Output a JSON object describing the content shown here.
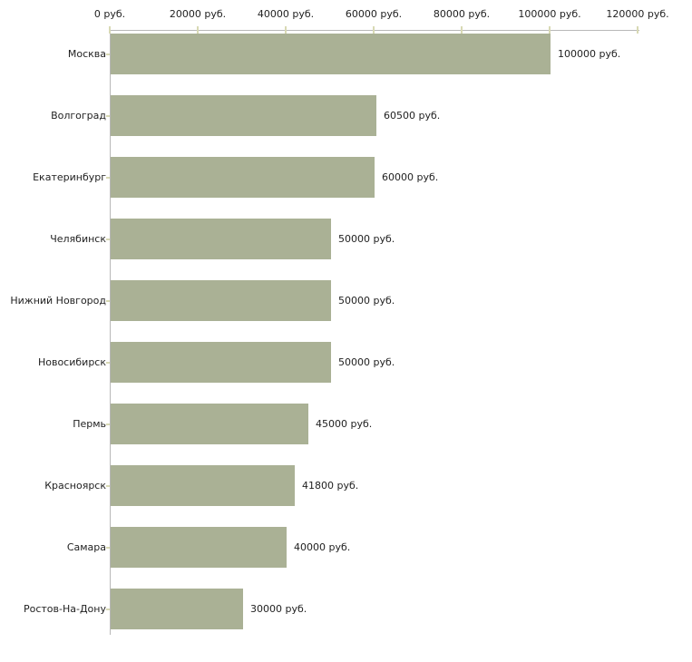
{
  "chart_data": {
    "type": "bar",
    "orientation": "horizontal",
    "title": "",
    "xlabel": "",
    "ylabel": "",
    "categories": [
      "Москва",
      "Волгоград",
      "Екатеринбург",
      "Челябинск",
      "Нижний Новгород",
      "Новосибирск",
      "Пермь",
      "Красноярск",
      "Самара",
      "Ростов-На-Дону"
    ],
    "values": [
      100000,
      60500,
      60000,
      50000,
      50000,
      50000,
      45000,
      41800,
      40000,
      30000
    ],
    "value_labels": [
      "100000 руб.",
      "60500 руб.",
      "60000 руб.",
      "50000 руб.",
      "50000 руб.",
      "50000 руб.",
      "45000 руб.",
      "41800 руб.",
      "40000 руб.",
      "30000 руб."
    ],
    "x_ticks": [
      {
        "value": 0,
        "label": "0 руб."
      },
      {
        "value": 20000,
        "label": "20000 руб."
      },
      {
        "value": 40000,
        "label": "40000 руб."
      },
      {
        "value": 60000,
        "label": "60000 руб."
      },
      {
        "value": 80000,
        "label": "80000 руб."
      },
      {
        "value": 100000,
        "label": "100000 руб."
      },
      {
        "value": 120000,
        "label": "120000 руб."
      }
    ],
    "xlim": [
      0,
      120000
    ],
    "grid": false,
    "legend": null,
    "colors": {
      "bar": "#aab195",
      "axis": "#b8b8b8",
      "tick": "#d8d9b4",
      "text": "#222222",
      "background": "#ffffff"
    }
  }
}
